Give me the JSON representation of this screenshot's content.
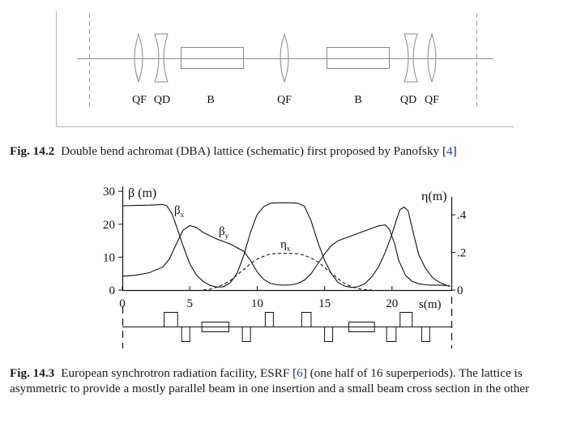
{
  "figure1": {
    "element_labels": [
      "QF",
      "QD",
      "B",
      "QF",
      "B",
      "QD",
      "QF"
    ],
    "caption": {
      "number": "Fig. 14.2",
      "text": "Double bend achromat (DBA) lattice (schematic) first proposed by Panofsky [",
      "ref": "4",
      "text_end": "]"
    }
  },
  "figure2": {
    "left_axis_label": "β (m)",
    "right_axis_label": "η(m)",
    "x_axis_label": "s(m)",
    "series_labels": {
      "beta_x": "β",
      "beta_x_sub": "x",
      "beta_y": "β",
      "beta_y_sub": "y",
      "eta": "η",
      "eta_sub": "x"
    },
    "caption": {
      "number": "Fig. 14.3",
      "text": "European synchrotron radiation facility, ESRF [",
      "ref": "6",
      "text_end": "] (one half of 16 superperiods). The lattice is asymmetric to provide a mostly parallel beam in one insertion and a small beam cross section in the other"
    }
  },
  "chart_data": {
    "type": "line",
    "xlim": [
      0,
      24.4
    ],
    "ylim": [
      0,
      32
    ],
    "y2lim": [
      0,
      0.56
    ],
    "x_ticks": [
      0,
      5,
      10,
      15,
      20
    ],
    "y_ticks": [
      0,
      10,
      20,
      30
    ],
    "y2_ticks": [
      0,
      0.2,
      0.4
    ],
    "y2_tick_labels": [
      "0",
      ".2",
      ".4"
    ],
    "series": [
      {
        "axis": "left",
        "style": "solid",
        "x": [
          0,
          1,
          2,
          3,
          3.3,
          3.7,
          4,
          4.5,
          5,
          5.5,
          6,
          6.5,
          7,
          7.5,
          8,
          8.5,
          9,
          9.5,
          10,
          10.5,
          11,
          11.5,
          12,
          12.5,
          13,
          13.5,
          14,
          14.5,
          15,
          15.5,
          16,
          16.5,
          17,
          17.5,
          18,
          18.5,
          19,
          19.5,
          20,
          20.3,
          20.6,
          20.9,
          21.2,
          21.6,
          22,
          22.5,
          23,
          23.5,
          24,
          24.3
        ],
        "y": [
          25.6,
          25.7,
          25.8,
          26.0,
          25.6,
          23.0,
          19.5,
          13.5,
          8.0,
          4.5,
          2.6,
          1.4,
          0.9,
          1.0,
          2.2,
          5.0,
          10.5,
          17.5,
          23.0,
          25.4,
          26.4,
          26.5,
          26.5,
          26.5,
          26.4,
          25.5,
          21.0,
          14.5,
          9.0,
          5.0,
          2.3,
          1.2,
          0.8,
          1.0,
          2.0,
          4.0,
          7.0,
          11.5,
          17.0,
          21.0,
          24.5,
          25.2,
          24.0,
          17.0,
          10.5,
          6.5,
          3.8,
          2.4,
          1.5,
          1.1
        ]
      },
      {
        "axis": "left",
        "style": "solid",
        "x": [
          0,
          1,
          2,
          3,
          3.5,
          4,
          4.5,
          5,
          5.5,
          6,
          7,
          8,
          9,
          9.5,
          10,
          10.5,
          11,
          11.5,
          12,
          12.5,
          13,
          13.5,
          14,
          14.5,
          15,
          15.5,
          16,
          17,
          18,
          19,
          19.5,
          19.8,
          20.2,
          20.5,
          21,
          21.5,
          22,
          22.5,
          23,
          23.5,
          24,
          24.3
        ],
        "y": [
          4.2,
          4.5,
          5.3,
          7.0,
          9.5,
          14.0,
          18.2,
          19.6,
          19.0,
          17.5,
          15.5,
          14.0,
          11.8,
          9.0,
          5.5,
          3.2,
          2.0,
          1.6,
          1.5,
          1.6,
          2.0,
          3.0,
          5.0,
          8.0,
          11.0,
          13.5,
          15.0,
          16.5,
          18.0,
          19.5,
          19.8,
          18.5,
          14.0,
          9.0,
          4.5,
          2.6,
          1.9,
          1.6,
          1.5,
          1.5,
          1.4,
          1.3
        ]
      },
      {
        "axis": "right",
        "style": "dashed",
        "x": [
          6,
          6.5,
          7,
          7.5,
          8,
          8.5,
          9,
          9.5,
          10,
          10.5,
          11,
          11.5,
          12,
          12.5,
          13,
          13.5,
          14,
          14.5,
          15,
          15.5,
          16,
          16.5,
          17,
          17.5,
          18,
          18.5
        ],
        "y": [
          0.0,
          0.005,
          0.015,
          0.03,
          0.05,
          0.08,
          0.11,
          0.14,
          0.165,
          0.18,
          0.192,
          0.195,
          0.195,
          0.195,
          0.193,
          0.185,
          0.17,
          0.15,
          0.12,
          0.09,
          0.06,
          0.035,
          0.018,
          0.007,
          0.002,
          0.0
        ]
      }
    ],
    "magnets": [
      {
        "type": "quad",
        "x0": 3.1,
        "x1": 4.1,
        "dir": "up"
      },
      {
        "type": "quad",
        "x0": 4.4,
        "x1": 5.0,
        "dir": "down"
      },
      {
        "type": "dipole",
        "x0": 5.9,
        "x1": 7.9
      },
      {
        "type": "quad",
        "x0": 8.9,
        "x1": 9.5,
        "dir": "down"
      },
      {
        "type": "quad",
        "x0": 10.6,
        "x1": 11.2,
        "dir": "up"
      },
      {
        "type": "quad",
        "x0": 13.3,
        "x1": 14.0,
        "dir": "up"
      },
      {
        "type": "quad",
        "x0": 15.0,
        "x1": 15.6,
        "dir": "down"
      },
      {
        "type": "dipole",
        "x0": 16.8,
        "x1": 18.7
      },
      {
        "type": "quad",
        "x0": 19.6,
        "x1": 20.3,
        "dir": "down"
      },
      {
        "type": "quad",
        "x0": 20.6,
        "x1": 21.5,
        "dir": "up"
      },
      {
        "type": "quad",
        "x0": 22.2,
        "x1": 22.8,
        "dir": "down"
      }
    ]
  }
}
